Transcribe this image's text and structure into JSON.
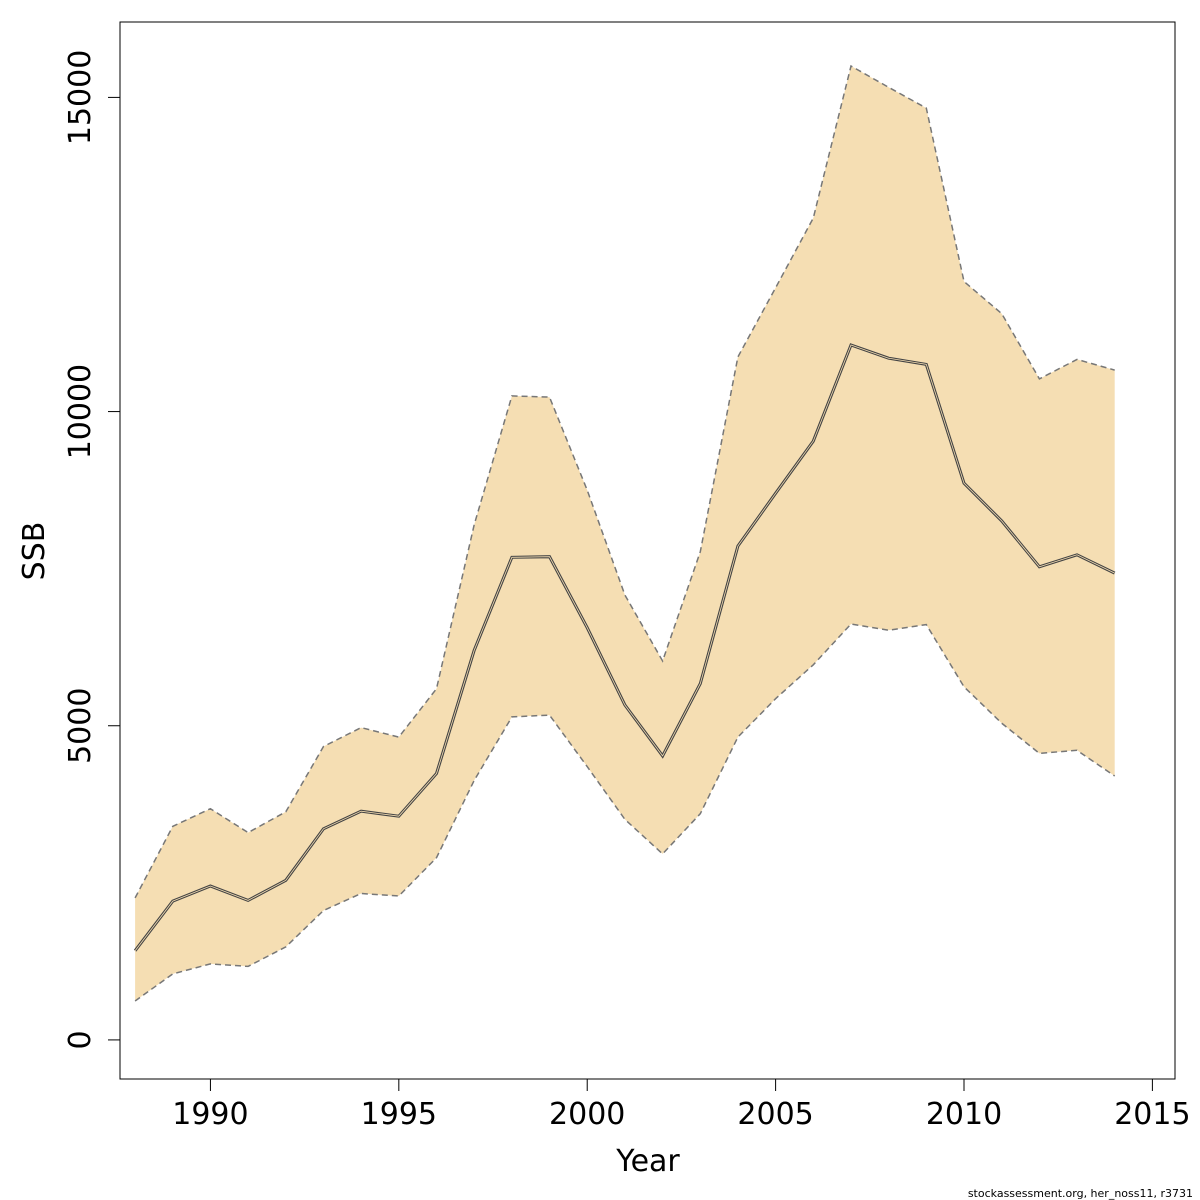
{
  "chart_data": {
    "type": "area",
    "xlabel": "Year",
    "ylabel": "SSB",
    "xlim": [
      1987.6,
      2015.6
    ],
    "ylim": [
      -622,
      16200
    ],
    "x_ticks": [
      1990,
      1995,
      2000,
      2005,
      2010,
      2015
    ],
    "y_ticks": [
      0,
      5000,
      10000,
      15000
    ],
    "grid": false,
    "colors": {
      "band": "#f5deb3",
      "line": "#444444",
      "bound": "#777777"
    },
    "x": [
      1988,
      1989,
      1990,
      1991,
      1992,
      1993,
      1994,
      1995,
      1996,
      1997,
      1998,
      1999,
      2000,
      2001,
      2002,
      2003,
      2004,
      2005,
      2006,
      2007,
      2008,
      2009,
      2010,
      2011,
      2012,
      2013,
      2014
    ],
    "series": [
      {
        "role": "estimate",
        "values": [
          1420,
          2210,
          2450,
          2220,
          2540,
          3360,
          3640,
          3560,
          4240,
          6200,
          7680,
          7690,
          6560,
          5330,
          4520,
          5670,
          7860,
          8700,
          9530,
          11060,
          10850,
          10750,
          8860,
          8260,
          7530,
          7720,
          7430
        ]
      },
      {
        "role": "upper",
        "values": [
          2260,
          3400,
          3680,
          3300,
          3630,
          4670,
          4970,
          4820,
          5590,
          8200,
          10250,
          10230,
          8750,
          7080,
          6030,
          7770,
          10870,
          11970,
          13080,
          15500,
          15160,
          14830,
          12070,
          11560,
          10520,
          10830,
          10660
        ]
      },
      {
        "role": "lower",
        "values": [
          620,
          1050,
          1210,
          1170,
          1480,
          2060,
          2330,
          2290,
          2900,
          4130,
          5140,
          5170,
          4350,
          3510,
          2960,
          3600,
          4820,
          5430,
          5970,
          6620,
          6520,
          6610,
          5620,
          5040,
          4560,
          4610,
          4200
        ]
      }
    ]
  },
  "footer": {
    "credit": "stockassessment.org, her_noss11, r3731"
  }
}
